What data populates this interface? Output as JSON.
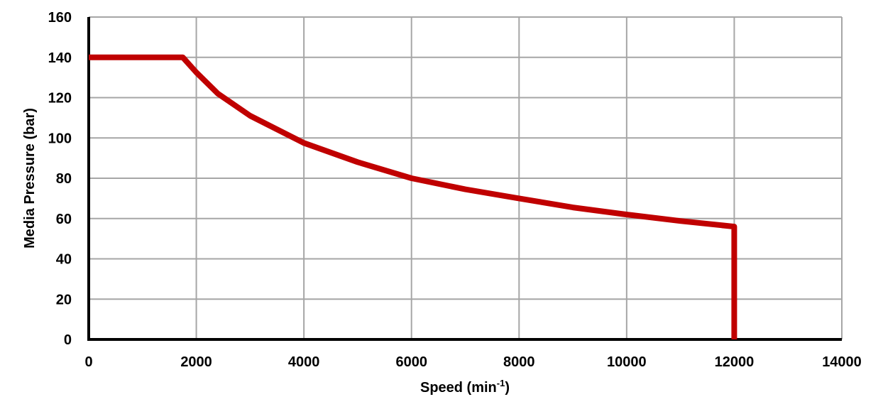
{
  "chart_data": {
    "type": "line",
    "title": "",
    "xlabel": "Speed (min-1)",
    "xlabel_main": "Speed (min",
    "xlabel_sup": "-1",
    "xlabel_close": ")",
    "ylabel": "Media Pressure (bar)",
    "xlim": [
      0,
      14000
    ],
    "ylim": [
      0,
      160
    ],
    "xticks": [
      0,
      2000,
      4000,
      6000,
      8000,
      10000,
      12000,
      14000
    ],
    "yticks": [
      0,
      20,
      40,
      60,
      80,
      100,
      120,
      140,
      160
    ],
    "grid": true,
    "legend": null,
    "series": [
      {
        "name": "Media Pressure",
        "color": "#c00000",
        "x": [
          0,
          1750,
          2000,
          2400,
          3000,
          4000,
          5000,
          6000,
          7000,
          8000,
          9000,
          10000,
          11000,
          12000,
          12000
        ],
        "y": [
          140,
          140,
          132.5,
          122,
          111,
          97.5,
          88,
          80,
          74.5,
          70,
          65.5,
          62,
          58.8,
          56,
          0
        ]
      }
    ]
  },
  "colors": {
    "line": "#c00000",
    "grid": "#a6a6a6",
    "axis": "#000000"
  }
}
